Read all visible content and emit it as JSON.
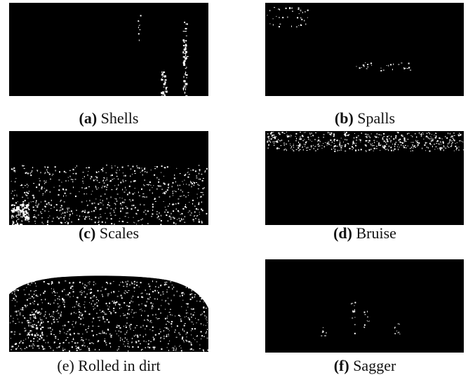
{
  "panels": [
    {
      "label": "(a)",
      "caption": "Shells"
    },
    {
      "label": "(b)",
      "caption": "Spalls"
    },
    {
      "label": "(c)",
      "caption": "Scales"
    },
    {
      "label": "(d)",
      "caption": "Bruise"
    },
    {
      "label": "(e)",
      "caption": "Rolled in dirt"
    },
    {
      "label": "(f)",
      "caption": "Sagger"
    }
  ]
}
